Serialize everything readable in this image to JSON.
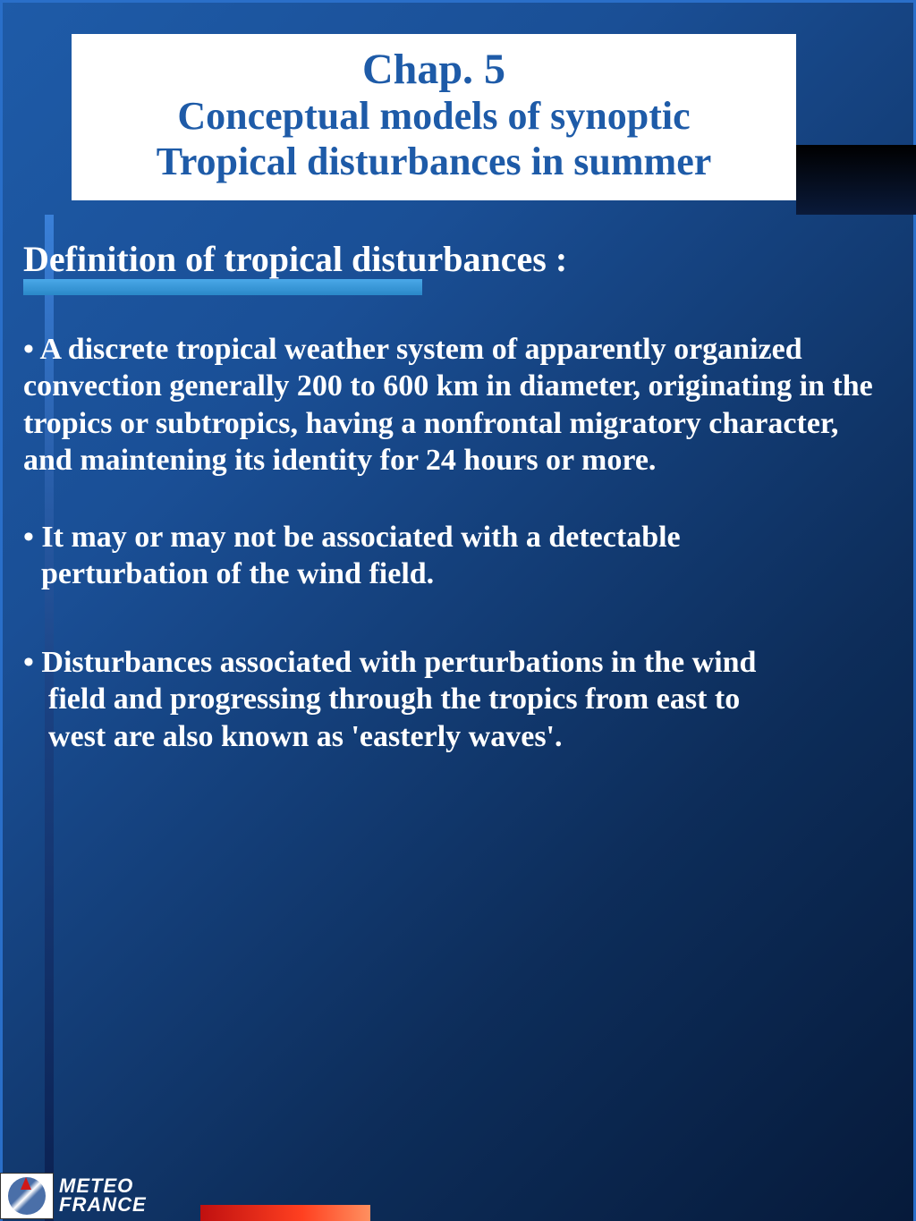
{
  "colors": {
    "title_text": "#1e5ba8",
    "title_bg": "#ffffff",
    "body_text": "#ffffff",
    "underline": "#4aa8e8",
    "bg_gradient_start": "#1e5ba8",
    "bg_gradient_end": "#061a3a",
    "red_bar_start": "#c01010",
    "red_bar_end": "#ff9060"
  },
  "typography": {
    "family": "Times New Roman",
    "title_size_pt": 36,
    "subtitle_size_pt": 33,
    "heading_size_pt": 30,
    "body_size_pt": 25,
    "logo_family": "Arial Italic Bold"
  },
  "title": {
    "main": "Chap. 5",
    "sub1": "Conceptual models of synoptic",
    "sub2": "Tropical disturbances in summer"
  },
  "heading": "Definition of tropical disturbances :",
  "bullets": {
    "b1": "• A discrete tropical weather system of apparently organized convection generally 200 to 600 km in diameter, originating in the tropics or subtropics, having a nonfrontal migratory character, and maintening its identity for 24 hours or more.",
    "b2_line1": "• It may or may not be associated with a detectable",
    "b2_line2": "perturbation of the wind field.",
    "b3_line1": "• Disturbances associated with perturbations in the wind",
    "b3_line2": "field and progressing through the tropics from east to",
    "b3_line3": "west are also known as 'easterly waves'."
  },
  "logo": {
    "line1": "METEO",
    "line2": "FRANCE"
  }
}
